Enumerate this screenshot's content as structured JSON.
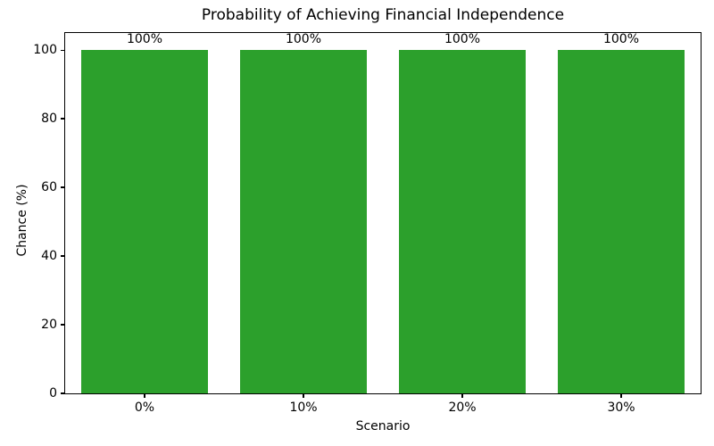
{
  "chart_data": {
    "type": "bar",
    "title": "Probability of Achieving Financial Independence",
    "xlabel": "Scenario",
    "ylabel": "Chance (%)",
    "categories": [
      "0%",
      "10%",
      "20%",
      "30%"
    ],
    "values": [
      100,
      100,
      100,
      100
    ],
    "bar_labels": [
      "100%",
      "100%",
      "100%",
      "100%"
    ],
    "yticks": [
      0,
      20,
      40,
      60,
      80,
      100
    ],
    "ylim": [
      0,
      105
    ],
    "bar_color": "#2ca02c",
    "bar_width_fraction": 0.8,
    "grid": false,
    "legend_position": "none",
    "text_color": "#000000",
    "background_color": "#ffffff"
  }
}
